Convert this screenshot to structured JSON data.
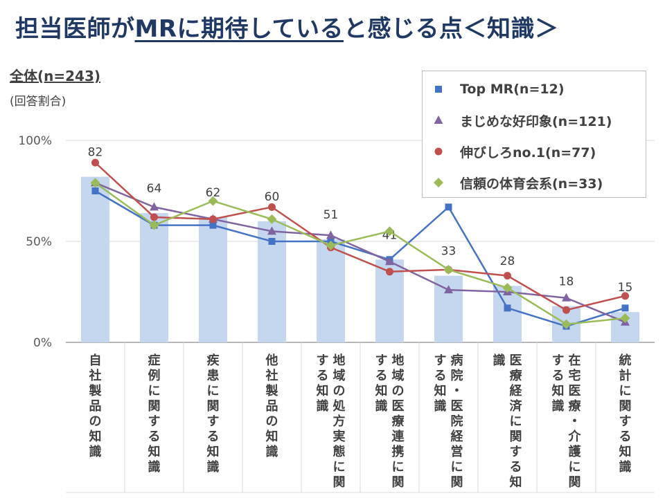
{
  "header": {
    "title_pre": "担当医師が",
    "title_underlined": "MRに期待している",
    "title_post": "と感じる点＜知識＞",
    "subtitle": "全体(n=243)",
    "note": "(回答割合)"
  },
  "colors": {
    "bar": "#c5d6ef",
    "s1": "#4472c4",
    "s2": "#8064a2",
    "s3": "#c0504d",
    "s4": "#9bbb59"
  },
  "chart_data": {
    "type": "bar",
    "categories": [
      "自社製品の知識",
      "症例に関する知識",
      "疾患に関する知識",
      "他社製品の知識",
      "地域の処方実態に関する知識",
      "地域の医療連携に関する知識",
      "病院・医院経営に関する知識",
      "医療経済に関する知識",
      "在宅医療・介護に関する知識",
      "統計に関する知識"
    ],
    "category_lines": [
      [
        "自社製品の知識"
      ],
      [
        "症例に関する知識"
      ],
      [
        "疾患に関する知識"
      ],
      [
        "他社製品の知識"
      ],
      [
        "地域の処方実態に関",
        "する知識"
      ],
      [
        "地域の医療連携に関",
        "する知識"
      ],
      [
        "病院・医院経営に関",
        "する知識"
      ],
      [
        "医療経済に関する知",
        "識"
      ],
      [
        "在宅医療・介護に関",
        "する知識"
      ],
      [
        "統計に関する知識"
      ]
    ],
    "values": [
      82,
      64,
      62,
      60,
      51,
      41,
      33,
      28,
      18,
      15
    ],
    "ylim": [
      0,
      100
    ],
    "yticks": [
      "0%",
      "50%",
      "100%"
    ],
    "grid": true,
    "legend_position": "top-right",
    "series": [
      {
        "name": "Top MR(n=12)",
        "marker": "square",
        "values": [
          75,
          58,
          58,
          50,
          50,
          41,
          67,
          17,
          8,
          17
        ]
      },
      {
        "name": "まじめな好印象(n=121)",
        "marker": "triangle",
        "values": [
          79,
          67,
          61,
          55,
          53,
          40,
          26,
          25,
          22,
          10
        ]
      },
      {
        "name": "伸びしろno.1(n=77)",
        "marker": "circle",
        "values": [
          89,
          62,
          61,
          67,
          47,
          35,
          36,
          33,
          16,
          23
        ]
      },
      {
        "name": "信頼の体育会系(n=33)",
        "marker": "diamond",
        "values": [
          79,
          58,
          70,
          61,
          48,
          55,
          36,
          27,
          9,
          12
        ]
      }
    ]
  }
}
